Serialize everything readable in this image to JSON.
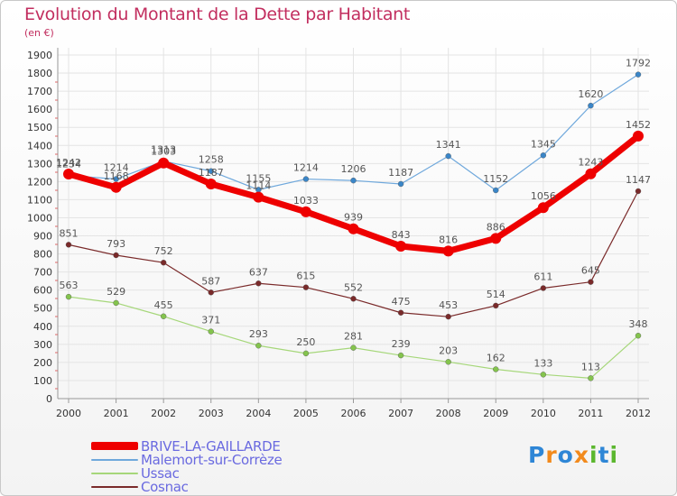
{
  "title": "Evolution du Montant de la Dette par Habitant",
  "unit": "(en €)",
  "logo": {
    "letters": [
      "P",
      "r",
      "o",
      "x",
      "i",
      "t",
      "i"
    ],
    "colors": [
      "#2e86d6",
      "#f28a1c",
      "#2e86d6",
      "#f28a1c",
      "#5bb72e",
      "#2e86d6",
      "#5bb72e"
    ]
  },
  "chart_data": {
    "type": "line",
    "x": [
      "2000",
      "2001",
      "2002",
      "2003",
      "2004",
      "2005",
      "2006",
      "2007",
      "2008",
      "2009",
      "2010",
      "2011",
      "2012"
    ],
    "ylim": [
      0,
      1900
    ],
    "yticks": [
      0,
      100,
      200,
      300,
      400,
      500,
      600,
      700,
      800,
      900,
      1000,
      1100,
      1200,
      1300,
      1400,
      1500,
      1600,
      1700,
      1800,
      1900
    ],
    "grid": true,
    "legend_position": "bottom-left",
    "series": [
      {
        "name": "BRIVE-LA-GAILLARDE",
        "color": "#ee0000",
        "marker": "#ee0000",
        "values": [
          1242,
          1168,
          1303,
          1187,
          1114,
          1033,
          939,
          843,
          816,
          886,
          1056,
          1243,
          1452
        ]
      },
      {
        "name": "Malemort-sur-Corrèze",
        "color": "#6fa8dc",
        "marker": "#3a86c8",
        "values": [
          1234,
          1214,
          1313,
          1258,
          1155,
          1214,
          1206,
          1187,
          1341,
          1152,
          1345,
          1620,
          1792
        ]
      },
      {
        "name": "Ussac",
        "color": "#a6d77a",
        "marker": "#84c44d",
        "values": [
          563,
          529,
          455,
          371,
          293,
          250,
          281,
          239,
          203,
          162,
          133,
          113,
          348
        ]
      },
      {
        "name": "Cosnac",
        "color": "#7a2a2a",
        "marker": "#7a2a2a",
        "values": [
          851,
          793,
          752,
          587,
          637,
          615,
          552,
          475,
          453,
          514,
          611,
          645,
          1147
        ]
      }
    ]
  }
}
